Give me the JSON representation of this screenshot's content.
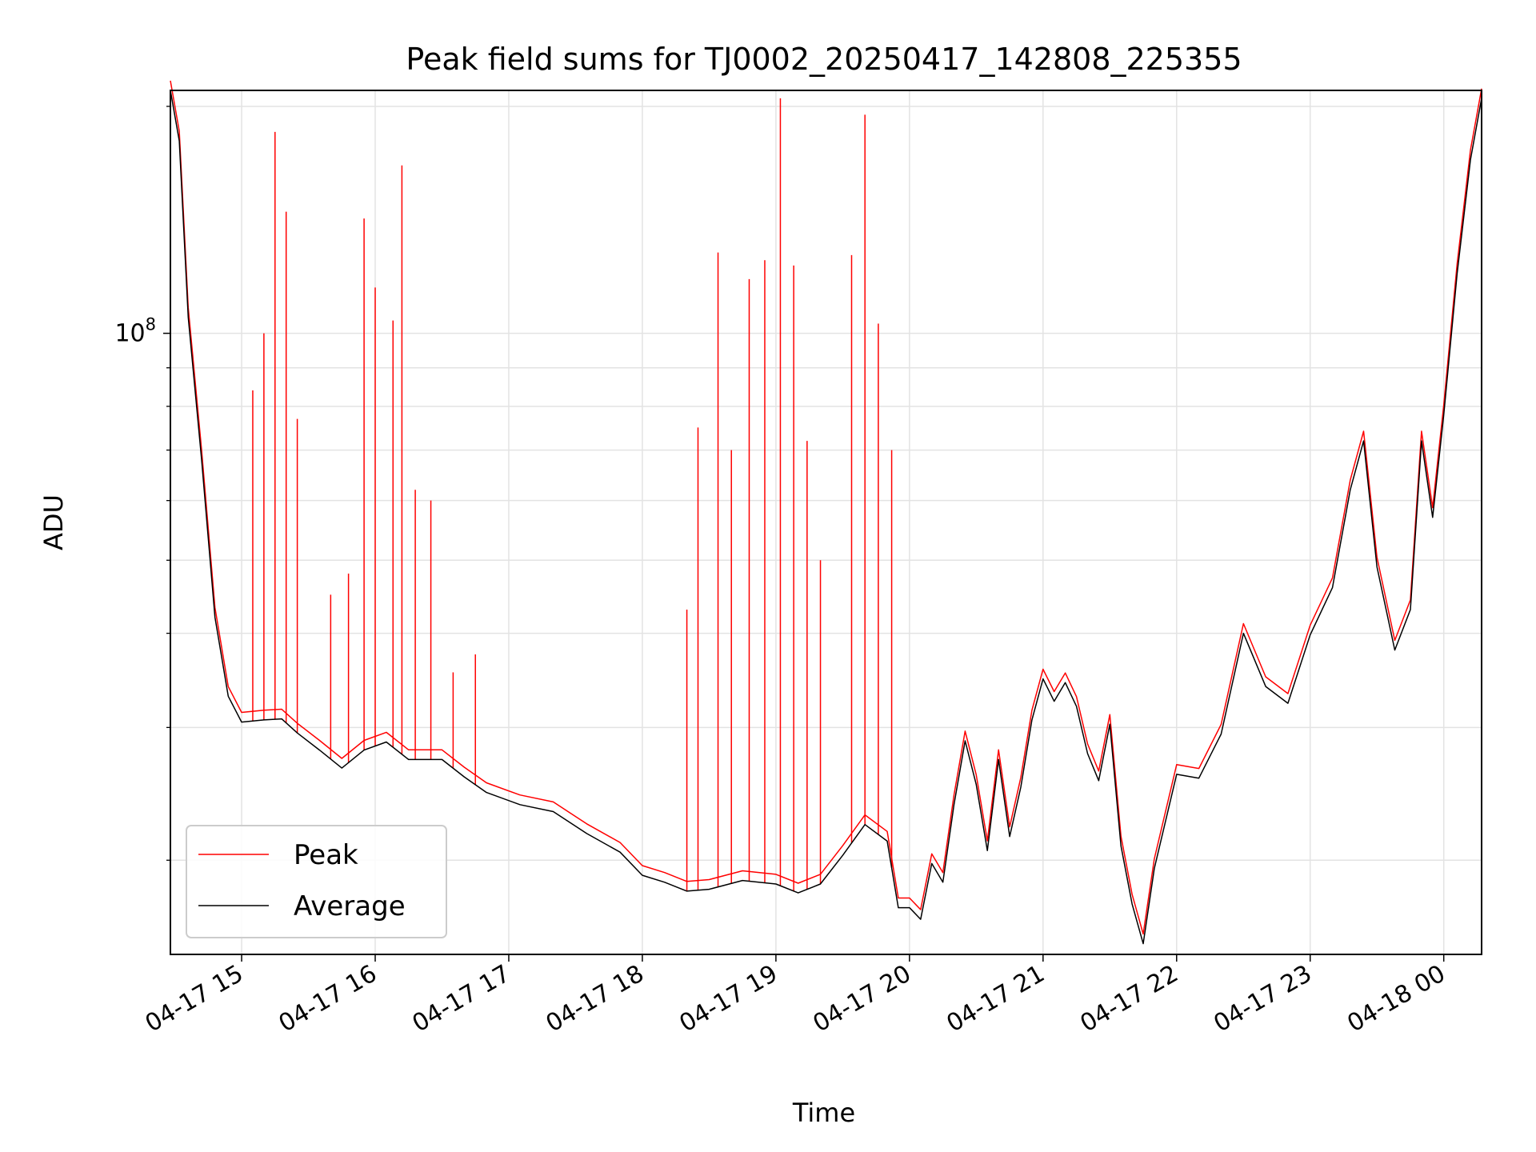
{
  "chart_data": {
    "type": "line",
    "title": "Peak field sums for TJ0002_20250417_142808_225355",
    "xlabel": "Time",
    "ylabel": "ADU",
    "yscale": "log",
    "ylim": [
      15000000,
      210000000
    ],
    "xlim": [
      "2025-04-17 14:28",
      "2025-04-18 00:17"
    ],
    "grid": true,
    "legend_position": "lower-left",
    "x_ticks": [
      "04-17 15",
      "04-17 16",
      "04-17 17",
      "04-17 18",
      "04-17 19",
      "04-17 20",
      "04-17 21",
      "04-17 22",
      "04-17 23",
      "04-18 00"
    ],
    "y_ticks": [
      {
        "value": 100000000,
        "base": "10",
        "exp": "8"
      }
    ],
    "series": [
      {
        "name": "Average",
        "color": "#000000",
        "points": [
          [
            "2025-04-17 14:28",
            210000000
          ],
          [
            "2025-04-17 14:32",
            180000000
          ],
          [
            "2025-04-17 14:36",
            105000000
          ],
          [
            "2025-04-17 14:42",
            68000000
          ],
          [
            "2025-04-17 14:48",
            42000000
          ],
          [
            "2025-04-17 14:54",
            33000000
          ],
          [
            "2025-04-17 15:00",
            30500000
          ],
          [
            "2025-04-17 15:10",
            30700000
          ],
          [
            "2025-04-17 15:18",
            30800000
          ],
          [
            "2025-04-17 15:25",
            29500000
          ],
          [
            "2025-04-17 15:35",
            28000000
          ],
          [
            "2025-04-17 15:45",
            26500000
          ],
          [
            "2025-04-17 15:55",
            28000000
          ],
          [
            "2025-04-17 16:05",
            28700000
          ],
          [
            "2025-04-17 16:15",
            27200000
          ],
          [
            "2025-04-17 16:30",
            27200000
          ],
          [
            "2025-04-17 16:40",
            25800000
          ],
          [
            "2025-04-17 16:50",
            24600000
          ],
          [
            "2025-04-17 17:05",
            23700000
          ],
          [
            "2025-04-17 17:20",
            23200000
          ],
          [
            "2025-04-17 17:35",
            21700000
          ],
          [
            "2025-04-17 17:50",
            20500000
          ],
          [
            "2025-04-17 18:00",
            19100000
          ],
          [
            "2025-04-17 18:10",
            18700000
          ],
          [
            "2025-04-17 18:20",
            18200000
          ],
          [
            "2025-04-17 18:30",
            18300000
          ],
          [
            "2025-04-17 18:45",
            18800000
          ],
          [
            "2025-04-17 19:00",
            18600000
          ],
          [
            "2025-04-17 19:10",
            18100000
          ],
          [
            "2025-04-17 19:20",
            18600000
          ],
          [
            "2025-04-17 19:30",
            20300000
          ],
          [
            "2025-04-17 19:40",
            22300000
          ],
          [
            "2025-04-17 19:50",
            21200000
          ],
          [
            "2025-04-17 19:55",
            17300000
          ],
          [
            "2025-04-17 20:00",
            17300000
          ],
          [
            "2025-04-17 20:05",
            16700000
          ],
          [
            "2025-04-17 20:10",
            19800000
          ],
          [
            "2025-04-17 20:15",
            18700000
          ],
          [
            "2025-04-17 20:20",
            23700000
          ],
          [
            "2025-04-17 20:25",
            28800000
          ],
          [
            "2025-04-17 20:30",
            25200000
          ],
          [
            "2025-04-17 20:35",
            20600000
          ],
          [
            "2025-04-17 20:40",
            27200000
          ],
          [
            "2025-04-17 20:45",
            21500000
          ],
          [
            "2025-04-17 20:50",
            25000000
          ],
          [
            "2025-04-17 20:55",
            30700000
          ],
          [
            "2025-04-17 21:00",
            34800000
          ],
          [
            "2025-04-17 21:05",
            32500000
          ],
          [
            "2025-04-17 21:10",
            34400000
          ],
          [
            "2025-04-17 21:15",
            32000000
          ],
          [
            "2025-04-17 21:20",
            27700000
          ],
          [
            "2025-04-17 21:25",
            25500000
          ],
          [
            "2025-04-17 21:30",
            30300000
          ],
          [
            "2025-04-17 21:35",
            20900000
          ],
          [
            "2025-04-17 21:40",
            17500000
          ],
          [
            "2025-04-17 21:45",
            15500000
          ],
          [
            "2025-04-17 21:50",
            19500000
          ],
          [
            "2025-04-17 22:00",
            26000000
          ],
          [
            "2025-04-17 22:10",
            25700000
          ],
          [
            "2025-04-17 22:20",
            29400000
          ],
          [
            "2025-04-17 22:30",
            40000000
          ],
          [
            "2025-04-17 22:40",
            34000000
          ],
          [
            "2025-04-17 22:50",
            32300000
          ],
          [
            "2025-04-17 23:00",
            39800000
          ],
          [
            "2025-04-17 23:10",
            46000000
          ],
          [
            "2025-04-17 23:18",
            62000000
          ],
          [
            "2025-04-17 23:24",
            72000000
          ],
          [
            "2025-04-17 23:30",
            49000000
          ],
          [
            "2025-04-17 23:38",
            38000000
          ],
          [
            "2025-04-17 23:45",
            43000000
          ],
          [
            "2025-04-17 23:50",
            72000000
          ],
          [
            "2025-04-17 23:55",
            57000000
          ],
          [
            "2025-04-18 00:00",
            78000000
          ],
          [
            "2025-04-18 00:06",
            120000000
          ],
          [
            "2025-04-18 00:12",
            170000000
          ],
          [
            "2025-04-18 00:17",
            205000000
          ]
        ]
      },
      {
        "name": "Peak",
        "color": "#ff0000",
        "spikes": [
          [
            "2025-04-17 15:05",
            84000000
          ],
          [
            "2025-04-17 15:10",
            100000000
          ],
          [
            "2025-04-17 15:15",
            185000000
          ],
          [
            "2025-04-17 15:20",
            145000000
          ],
          [
            "2025-04-17 15:25",
            77000000
          ],
          [
            "2025-04-17 15:40",
            45000000
          ],
          [
            "2025-04-17 15:48",
            48000000
          ],
          [
            "2025-04-17 15:55",
            142000000
          ],
          [
            "2025-04-17 16:00",
            115000000
          ],
          [
            "2025-04-17 16:08",
            104000000
          ],
          [
            "2025-04-17 16:12",
            167000000
          ],
          [
            "2025-04-17 16:18",
            62000000
          ],
          [
            "2025-04-17 16:25",
            60000000
          ],
          [
            "2025-04-17 16:35",
            35500000
          ],
          [
            "2025-04-17 16:45",
            37500000
          ],
          [
            "2025-04-17 18:20",
            43000000
          ],
          [
            "2025-04-17 18:25",
            75000000
          ],
          [
            "2025-04-17 18:34",
            128000000
          ],
          [
            "2025-04-17 18:40",
            70000000
          ],
          [
            "2025-04-17 18:48",
            118000000
          ],
          [
            "2025-04-17 18:55",
            125000000
          ],
          [
            "2025-04-17 19:02",
            205000000
          ],
          [
            "2025-04-17 19:08",
            123000000
          ],
          [
            "2025-04-17 19:14",
            72000000
          ],
          [
            "2025-04-17 19:20",
            50000000
          ],
          [
            "2025-04-17 19:34",
            127000000
          ],
          [
            "2025-04-17 19:40",
            195000000
          ],
          [
            "2025-04-17 19:46",
            103000000
          ],
          [
            "2025-04-17 19:52",
            70000000
          ]
        ]
      }
    ]
  }
}
